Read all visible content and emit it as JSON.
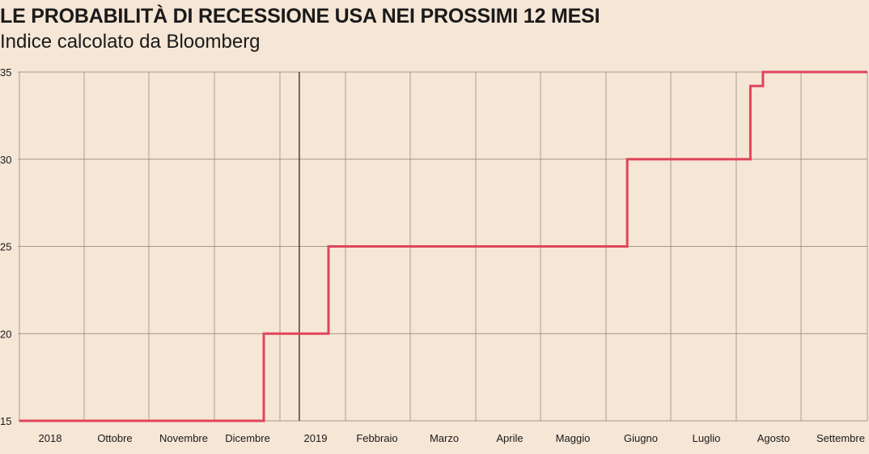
{
  "title": "LE PROBABILITÀ DI RECESSIONE USA NEI PROSSIMI 12 MESI",
  "subtitle": "Indice calcolato da Bloomberg",
  "colors": {
    "background": "#f5e6d6",
    "line": "#e0455b",
    "grid": "#8a7e74",
    "year_divider": "#1a1a1a"
  },
  "chart_data": {
    "type": "line",
    "xlabel": "",
    "ylabel": "",
    "ylim": [
      15,
      35
    ],
    "y_ticks": [
      15,
      20,
      25,
      30,
      35
    ],
    "y_tick_labels": [
      "15",
      "20",
      "25",
      "30",
      "35"
    ],
    "x_tick_labels": [
      "2018",
      "Ottobre",
      "Novembre",
      "Dicembre",
      "2019",
      "Febbraio",
      "Marzo",
      "Aprile",
      "Maggio",
      "Giugno",
      "Luglio",
      "Agosto",
      "Settembre"
    ],
    "x_range": [
      "2018-08-20",
      "2019-09-30"
    ],
    "year_divider": "2019-01-01",
    "grid": true,
    "step": true,
    "series": [
      {
        "x": [
          "2018-08-20",
          "2018-12-15",
          "2019-01-15",
          "2019-06-07",
          "2019-08-05",
          "2019-08-11",
          "2019-09-30"
        ],
        "y": [
          15,
          20,
          25,
          30,
          34.2,
          35,
          35
        ]
      }
    ]
  }
}
